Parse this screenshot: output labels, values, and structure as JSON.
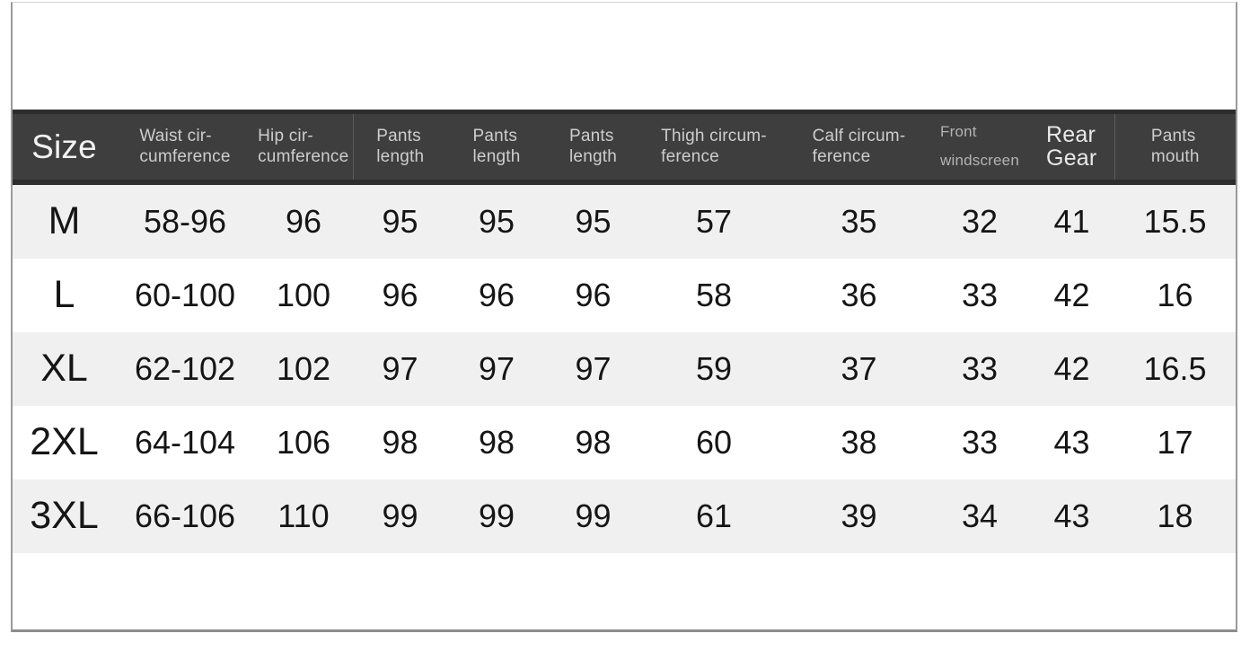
{
  "colors": {
    "header_background": "#3e3e3e",
    "header_edge": "#2d2d2d",
    "header_text": "#cdcdcd",
    "stripe_row": "#f0f0f0",
    "value_text": "#151515",
    "frame_border": "#9a9a9a"
  },
  "chart_data": {
    "type": "table",
    "title": "",
    "columns": [
      {
        "key": "size",
        "label": "Size"
      },
      {
        "key": "waist-circumference",
        "label": "Waist cir-\ncumference"
      },
      {
        "key": "hip-circumference",
        "label": "Hip cir-\ncumference"
      },
      {
        "key": "pants-length-1",
        "label": "Pants\nlength"
      },
      {
        "key": "pants-length-2",
        "label": "Pants\nlength"
      },
      {
        "key": "pants-length-3",
        "label": "Pants\nlength"
      },
      {
        "key": "thigh-circumference",
        "label": "Thigh circum-\nference"
      },
      {
        "key": "calf-circumference",
        "label": "Calf circum-\nference"
      },
      {
        "key": "front-windscreen",
        "label": "Front\nwindscreen"
      },
      {
        "key": "rear-gear",
        "label": "Rear\nGear"
      },
      {
        "key": "pants-mouth",
        "label": "Pants\nmouth"
      }
    ],
    "rows": [
      {
        "size": "M",
        "values": [
          "58-96",
          "96",
          "95",
          "95",
          "95",
          "57",
          "35",
          "32",
          "41",
          "15.5"
        ]
      },
      {
        "size": "L",
        "values": [
          "60-100",
          "100",
          "96",
          "96",
          "96",
          "58",
          "36",
          "33",
          "42",
          "16"
        ]
      },
      {
        "size": "XL",
        "values": [
          "62-102",
          "102",
          "97",
          "97",
          "97",
          "59",
          "37",
          "33",
          "42",
          "16.5"
        ]
      },
      {
        "size": "2XL",
        "values": [
          "64-104",
          "106",
          "98",
          "98",
          "98",
          "60",
          "38",
          "33",
          "43",
          "17"
        ]
      },
      {
        "size": "3XL",
        "values": [
          "66-106",
          "110",
          "99",
          "99",
          "99",
          "61",
          "39",
          "34",
          "43",
          "18"
        ]
      }
    ]
  }
}
